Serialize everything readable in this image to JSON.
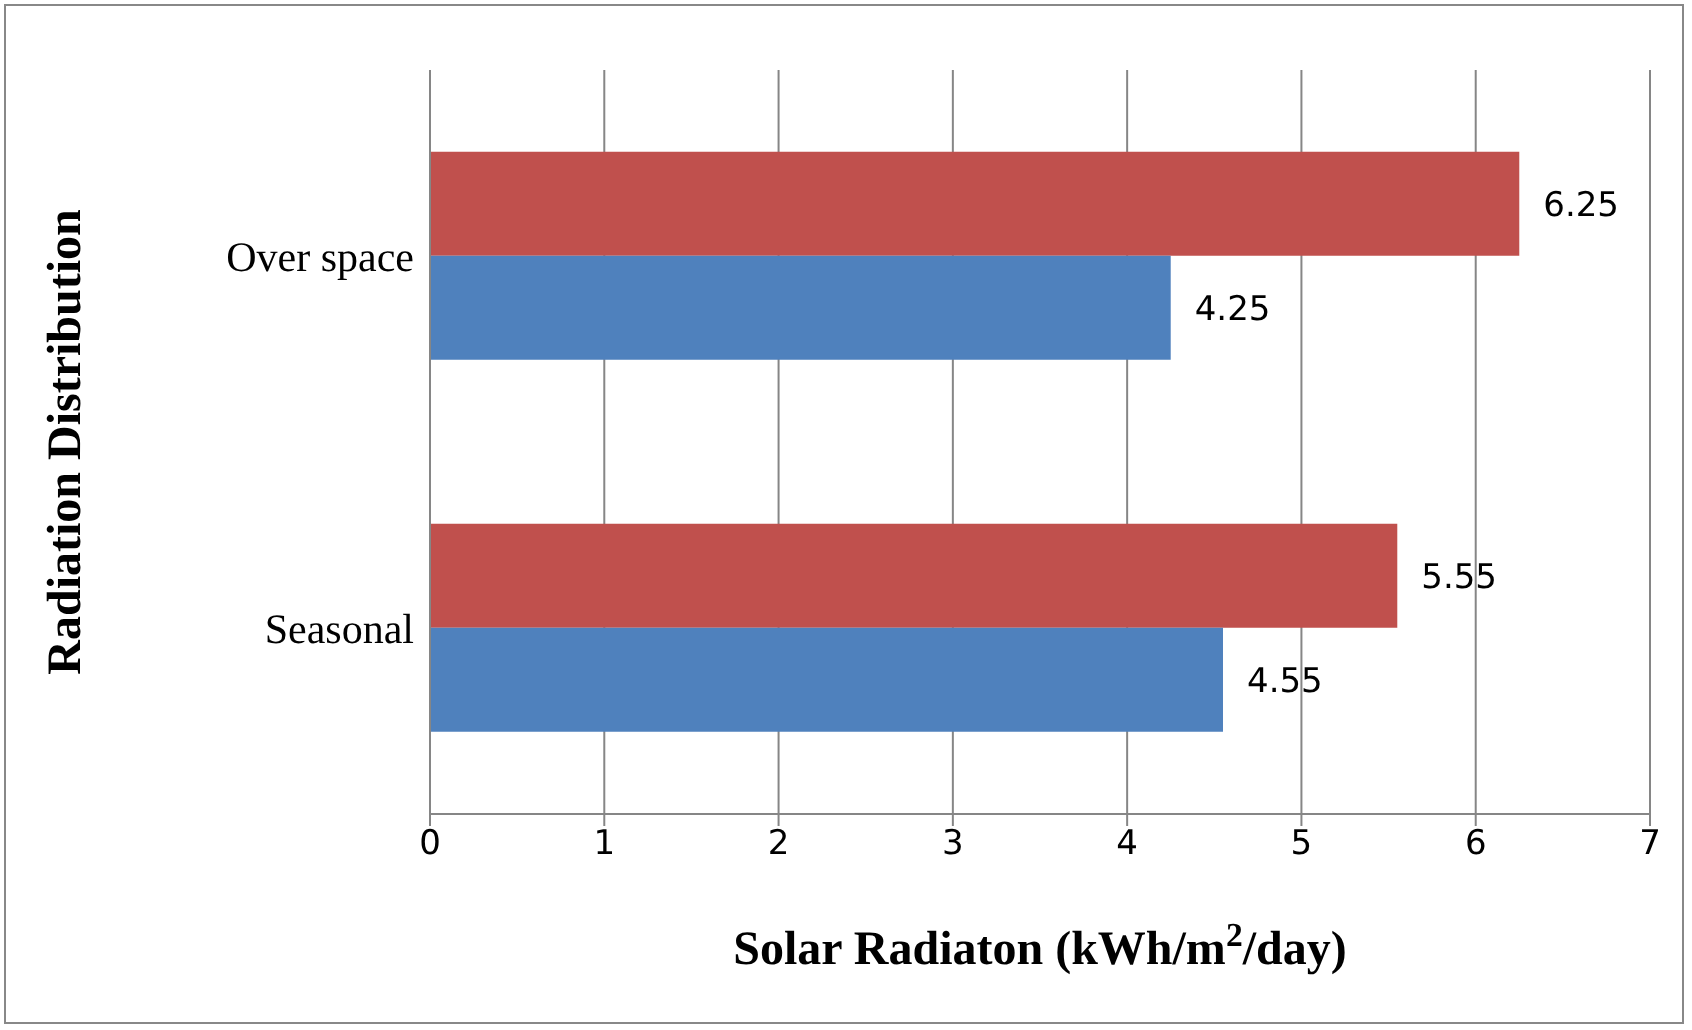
{
  "chart_data": {
    "type": "bar",
    "orientation": "horizontal",
    "xlabel": "Solar Radiaton (kWh/m$^{2}$/day)",
    "ylabel": "Radiation Distribution",
    "categories": [
      "Over space",
      "Seasonal"
    ],
    "series": [
      {
        "color": "#c0504d",
        "values": [
          6.25,
          5.55
        ]
      },
      {
        "color": "#4f81bd",
        "values": [
          4.25,
          4.55
        ]
      }
    ],
    "xlim": [
      0,
      7
    ],
    "xticks": [
      0,
      1,
      2,
      3,
      4,
      5,
      6,
      7
    ],
    "grid": "x",
    "data_labels": true
  }
}
